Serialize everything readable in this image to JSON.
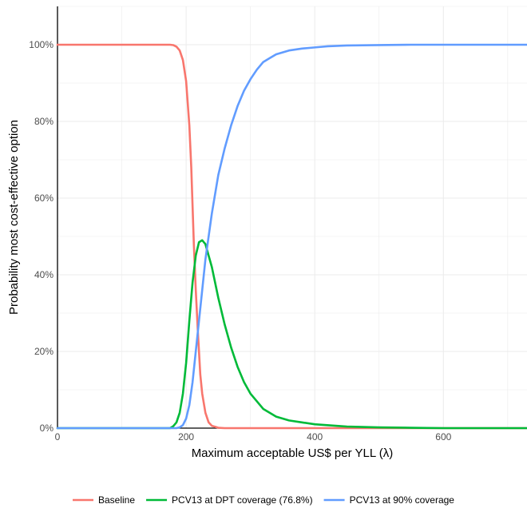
{
  "chart_data": {
    "type": "line",
    "title": "",
    "xlabel": "Maximum acceptable US$ per YLL (λ)",
    "ylabel": "Probability most cost-effective option",
    "xlim": [
      0,
      730
    ],
    "ylim": [
      0,
      1.1
    ],
    "x_ticks": [
      0,
      200,
      400,
      600
    ],
    "x_tick_labels": [
      "0",
      "200",
      "400",
      "600"
    ],
    "y_ticks": [
      0,
      0.2,
      0.4,
      0.6,
      0.8,
      1.0
    ],
    "y_tick_labels": [
      "0%",
      "20%",
      "40%",
      "60%",
      "80%",
      "100%"
    ],
    "grid": true,
    "legend_position": "bottom",
    "series": [
      {
        "name": "Baseline",
        "color": "#f8766d",
        "points": [
          [
            0,
            1.0
          ],
          [
            170,
            1.0
          ],
          [
            175,
            1.0
          ],
          [
            180,
            0.999
          ],
          [
            185,
            0.995
          ],
          [
            190,
            0.985
          ],
          [
            195,
            0.96
          ],
          [
            200,
            0.905
          ],
          [
            205,
            0.79
          ],
          [
            208,
            0.68
          ],
          [
            210,
            0.58
          ],
          [
            212,
            0.48
          ],
          [
            215,
            0.36
          ],
          [
            218,
            0.26
          ],
          [
            220,
            0.2
          ],
          [
            222,
            0.14
          ],
          [
            225,
            0.09
          ],
          [
            230,
            0.04
          ],
          [
            235,
            0.015
          ],
          [
            240,
            0.006
          ],
          [
            250,
            0.001
          ],
          [
            260,
            0
          ],
          [
            730,
            0
          ]
        ]
      },
      {
        "name": "PCV13 at DPT coverage (76.8%)",
        "color": "#00ba38",
        "points": [
          [
            0,
            0
          ],
          [
            175,
            0
          ],
          [
            180,
            0.005
          ],
          [
            185,
            0.015
          ],
          [
            190,
            0.04
          ],
          [
            195,
            0.09
          ],
          [
            200,
            0.17
          ],
          [
            205,
            0.28
          ],
          [
            210,
            0.38
          ],
          [
            215,
            0.45
          ],
          [
            220,
            0.485
          ],
          [
            225,
            0.49
          ],
          [
            230,
            0.48
          ],
          [
            240,
            0.42
          ],
          [
            250,
            0.34
          ],
          [
            260,
            0.27
          ],
          [
            270,
            0.21
          ],
          [
            280,
            0.16
          ],
          [
            290,
            0.12
          ],
          [
            300,
            0.09
          ],
          [
            320,
            0.05
          ],
          [
            340,
            0.03
          ],
          [
            360,
            0.02
          ],
          [
            380,
            0.015
          ],
          [
            400,
            0.01
          ],
          [
            450,
            0.004
          ],
          [
            500,
            0.002
          ],
          [
            550,
            0.001
          ],
          [
            600,
            0
          ],
          [
            730,
            0
          ]
        ]
      },
      {
        "name": "PCV13 at 90% coverage",
        "color": "#619cff",
        "points": [
          [
            0,
            0
          ],
          [
            185,
            0
          ],
          [
            190,
            0.002
          ],
          [
            195,
            0.008
          ],
          [
            200,
            0.025
          ],
          [
            205,
            0.06
          ],
          [
            210,
            0.12
          ],
          [
            215,
            0.2
          ],
          [
            220,
            0.28
          ],
          [
            225,
            0.36
          ],
          [
            230,
            0.44
          ],
          [
            240,
            0.56
          ],
          [
            250,
            0.66
          ],
          [
            260,
            0.73
          ],
          [
            270,
            0.79
          ],
          [
            280,
            0.84
          ],
          [
            290,
            0.88
          ],
          [
            300,
            0.91
          ],
          [
            310,
            0.935
          ],
          [
            320,
            0.955
          ],
          [
            330,
            0.965
          ],
          [
            340,
            0.975
          ],
          [
            360,
            0.985
          ],
          [
            380,
            0.99
          ],
          [
            400,
            0.993
          ],
          [
            420,
            0.996
          ],
          [
            450,
            0.998
          ],
          [
            500,
            0.999
          ],
          [
            550,
            1.0
          ],
          [
            600,
            1.0
          ],
          [
            730,
            1.0
          ]
        ]
      }
    ]
  }
}
